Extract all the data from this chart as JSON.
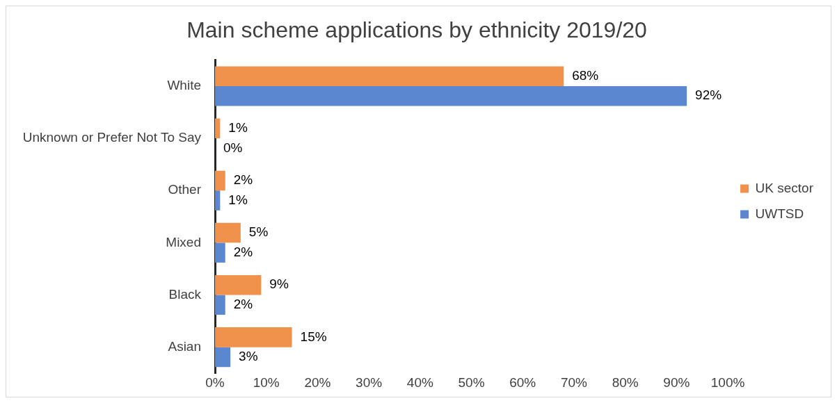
{
  "chart_data": {
    "type": "bar",
    "orientation": "horizontal",
    "title": "Main scheme applications by ethnicity 2019/20",
    "categories": [
      "White",
      "Unknown or Prefer Not To Say",
      "Other",
      "Mixed",
      "Black",
      "Asian"
    ],
    "series": [
      {
        "name": "UK sector",
        "color": "#f0914c",
        "values": [
          68,
          1,
          2,
          5,
          9,
          15
        ],
        "value_labels": [
          "68%",
          "1%",
          "2%",
          "5%",
          "9%",
          "15%"
        ]
      },
      {
        "name": "UWTSD",
        "color": "#5b86d0",
        "values": [
          92,
          0,
          1,
          2,
          2,
          3
        ],
        "value_labels": [
          "92%",
          "0%",
          "1%",
          "2%",
          "2%",
          "3%"
        ]
      }
    ],
    "xlim": [
      0,
      100
    ],
    "xticks": [
      {
        "value": 0,
        "label": "0%"
      },
      {
        "value": 10,
        "label": "10%"
      },
      {
        "value": 20,
        "label": "20%"
      },
      {
        "value": 30,
        "label": "30%"
      },
      {
        "value": 40,
        "label": "40%"
      },
      {
        "value": 50,
        "label": "50%"
      },
      {
        "value": 60,
        "label": "60%"
      },
      {
        "value": 70,
        "label": "70%"
      },
      {
        "value": 80,
        "label": "80%"
      },
      {
        "value": 90,
        "label": "90%"
      },
      {
        "value": 100,
        "label": "100%"
      }
    ],
    "grid": false,
    "legend": "right"
  }
}
